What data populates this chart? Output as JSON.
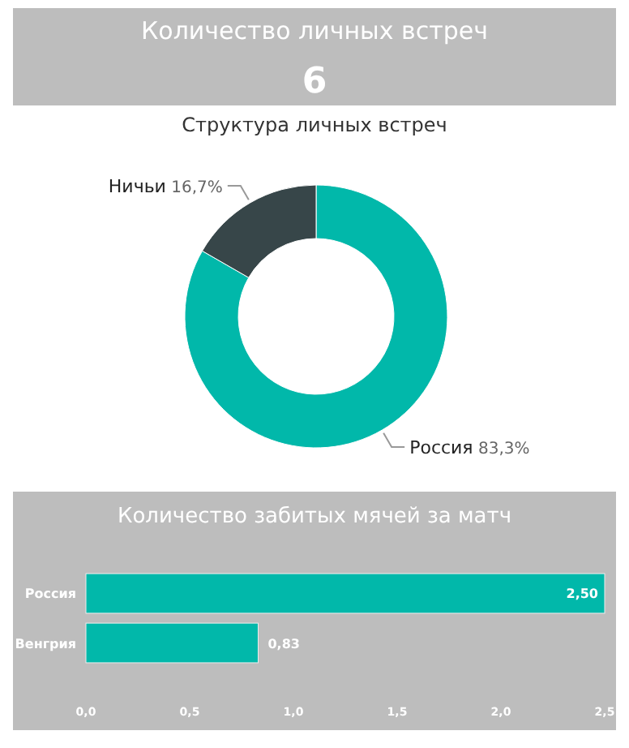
{
  "chart_data": [
    {
      "type": "other",
      "title": "Количество личных встреч",
      "values": [
        6
      ],
      "data_labels": true
    },
    {
      "type": "donut",
      "title": "Структура личных встреч",
      "categories": [
        "Россия",
        "Ничьи"
      ],
      "values": [
        83.3,
        16.7
      ],
      "value_labels": [
        "83,3%",
        "16,7%"
      ],
      "colors": [
        "#01b8aa",
        "#374649"
      ]
    },
    {
      "type": "bar",
      "orientation": "horizontal",
      "title": "Количество забитых мячей за матч",
      "categories": [
        "Россия",
        "Венгрия"
      ],
      "values": [
        2.5,
        0.83
      ],
      "value_labels": [
        "2,50",
        "0,83"
      ],
      "color": "#01b8aa",
      "xlim": [
        0,
        2.5
      ],
      "xticks": [
        {
          "value": 0,
          "label": "0,0"
        },
        {
          "value": 0.5,
          "label": "0,5"
        },
        {
          "value": 1,
          "label": "1,0"
        },
        {
          "value": 1.5,
          "label": "1,5"
        },
        {
          "value": 2,
          "label": "2,0"
        },
        {
          "value": 2.5,
          "label": "2,5"
        }
      ],
      "grid": false
    }
  ]
}
